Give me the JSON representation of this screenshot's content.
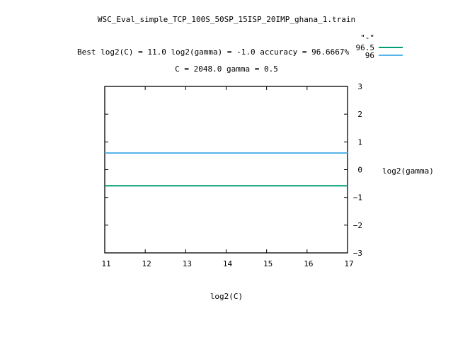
{
  "chart_data": {
    "type": "line",
    "title": "WSC_Eval_simple_TCP_100S_50SP_15ISP_20IMP_ghana_1.train",
    "subtitle_1": "Best log2(C) = 11.0  log2(gamma) = -1.0  accuracy = 96.6667%",
    "subtitle_2": "C = 2048.0  gamma = 0.5",
    "xlabel": "log2(C)",
    "ylabel": "log2(gamma)",
    "xlim": [
      11,
      17
    ],
    "ylim": [
      -3,
      3
    ],
    "x_ticks": [
      "11",
      "12",
      "13",
      "14",
      "15",
      "16",
      "17"
    ],
    "y_ticks": [
      "3",
      "2",
      "1",
      "0",
      "−1",
      "−2",
      "−3"
    ],
    "legend_title": "\"-\"",
    "legend_position": "top-right",
    "series": [
      {
        "name": "96.5",
        "color": "#009e73",
        "x": [
          11,
          17
        ],
        "y": [
          -0.58,
          -0.58
        ]
      },
      {
        "name": "96",
        "color": "#56b4e9",
        "x": [
          11,
          17
        ],
        "y": [
          0.6,
          0.6
        ]
      }
    ]
  }
}
